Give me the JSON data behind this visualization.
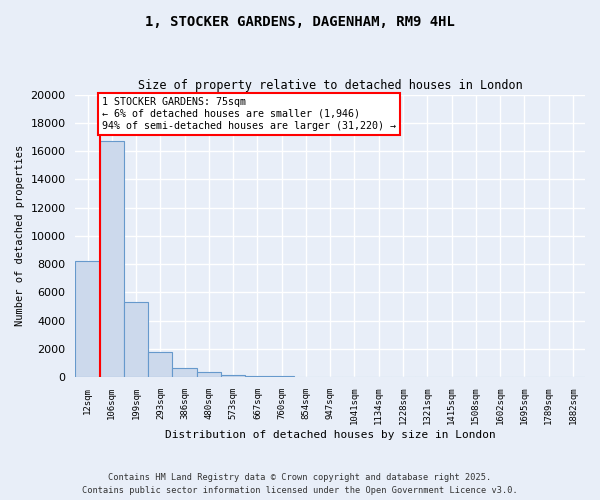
{
  "title": "1, STOCKER GARDENS, DAGENHAM, RM9 4HL",
  "subtitle": "Size of property relative to detached houses in London",
  "xlabel": "Distribution of detached houses by size in London",
  "ylabel": "Number of detached properties",
  "bar_labels": [
    "12sqm",
    "106sqm",
    "199sqm",
    "293sqm",
    "386sqm",
    "480sqm",
    "573sqm",
    "667sqm",
    "760sqm",
    "854sqm",
    "947sqm",
    "1041sqm",
    "1134sqm",
    "1228sqm",
    "1321sqm",
    "1415sqm",
    "1508sqm",
    "1602sqm",
    "1695sqm",
    "1789sqm",
    "1882sqm"
  ],
  "bar_values": [
    8200,
    16700,
    5300,
    1750,
    650,
    350,
    180,
    90,
    50,
    30,
    20,
    15,
    10,
    8,
    6,
    5,
    4,
    3,
    3,
    2,
    2
  ],
  "bar_color": "#ccd9ec",
  "bar_edge_color": "#6699cc",
  "annotation_text": "1 STOCKER GARDENS: 75sqm\n← 6% of detached houses are smaller (1,946)\n94% of semi-detached houses are larger (31,220) →",
  "annotation_box_color": "white",
  "annotation_box_edge": "red",
  "vline_color": "red",
  "ylim": [
    0,
    20000
  ],
  "yticks": [
    0,
    2000,
    4000,
    6000,
    8000,
    10000,
    12000,
    14000,
    16000,
    18000,
    20000
  ],
  "footer_line1": "Contains HM Land Registry data © Crown copyright and database right 2025.",
  "footer_line2": "Contains public sector information licensed under the Open Government Licence v3.0.",
  "background_color": "#e8eef8",
  "grid_color": "#c8d4e8"
}
